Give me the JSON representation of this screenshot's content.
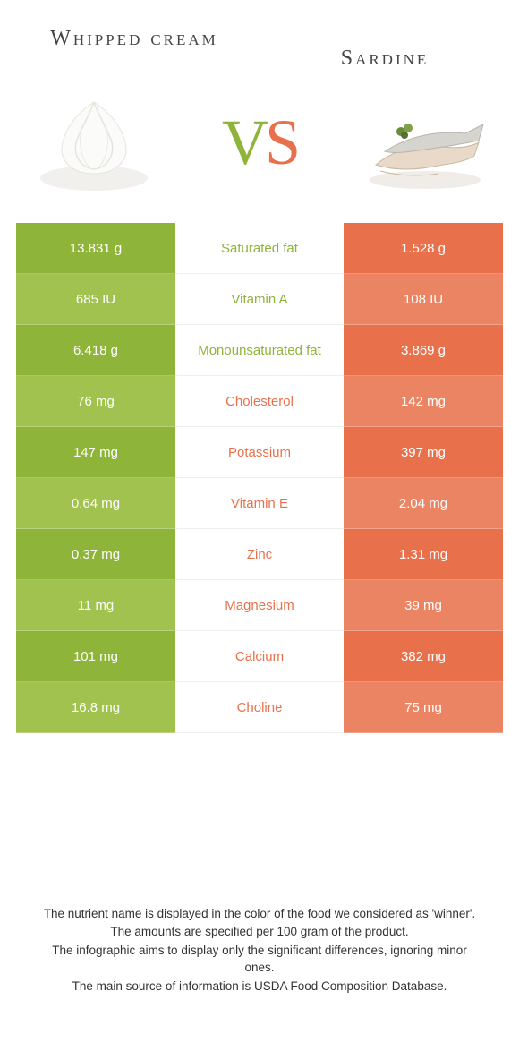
{
  "foods": {
    "left": {
      "title": "Whipped cream"
    },
    "right": {
      "title": "Sardine"
    }
  },
  "vs": {
    "v": "V",
    "s": "S"
  },
  "colors": {
    "left_odd": "#8fb43a",
    "left_even": "#a1c24e",
    "right_odd": "#e8714b",
    "right_even": "#eb8463",
    "winner_left": "#8fb43a",
    "winner_right": "#e8714b"
  },
  "rows": [
    {
      "left": "13.831 g",
      "label": "Saturated fat",
      "right": "1.528 g",
      "winner": "left"
    },
    {
      "left": "685 IU",
      "label": "Vitamin A",
      "right": "108 IU",
      "winner": "left"
    },
    {
      "left": "6.418 g",
      "label": "Monounsaturated fat",
      "right": "3.869 g",
      "winner": "left"
    },
    {
      "left": "76 mg",
      "label": "Cholesterol",
      "right": "142 mg",
      "winner": "right"
    },
    {
      "left": "147 mg",
      "label": "Potassium",
      "right": "397 mg",
      "winner": "right"
    },
    {
      "left": "0.64 mg",
      "label": "Vitamin E",
      "right": "2.04 mg",
      "winner": "right"
    },
    {
      "left": "0.37 mg",
      "label": "Zinc",
      "right": "1.31 mg",
      "winner": "right"
    },
    {
      "left": "11 mg",
      "label": "Magnesium",
      "right": "39 mg",
      "winner": "right"
    },
    {
      "left": "101 mg",
      "label": "Calcium",
      "right": "382 mg",
      "winner": "right"
    },
    {
      "left": "16.8 mg",
      "label": "Choline",
      "right": "75 mg",
      "winner": "right"
    }
  ],
  "footnotes": [
    "The nutrient name is displayed in the color of the food we considered as 'winner'.",
    "The amounts are specified per 100 gram of the product.",
    "The infographic aims to display only the significant differences, ignoring minor ones.",
    "The main source of information is USDA Food Composition Database."
  ]
}
